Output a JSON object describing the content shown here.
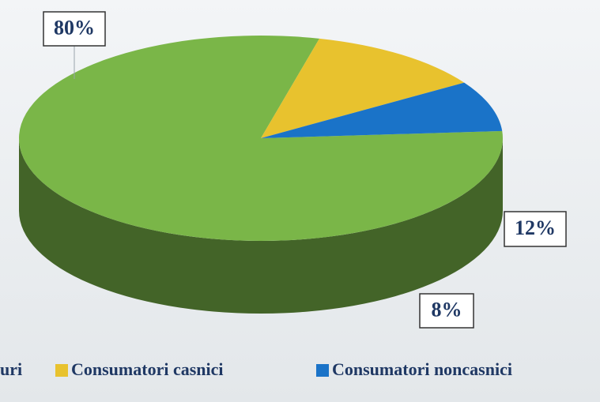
{
  "chart_data": {
    "type": "pie",
    "series": [
      {
        "name": "uri",
        "color": "#7ab648",
        "values": [
          80
        ],
        "value_labels": [
          "80%"
        ]
      },
      {
        "name": "Consumatori casnici",
        "color": "#e8c22e",
        "values": [
          12
        ],
        "value_labels": [
          "12%"
        ]
      },
      {
        "name": "Consumatori noncasnici",
        "color": "#1a73c8",
        "values": [
          8
        ],
        "value_labels": [
          "8%"
        ]
      }
    ],
    "legend": "bottom"
  }
}
